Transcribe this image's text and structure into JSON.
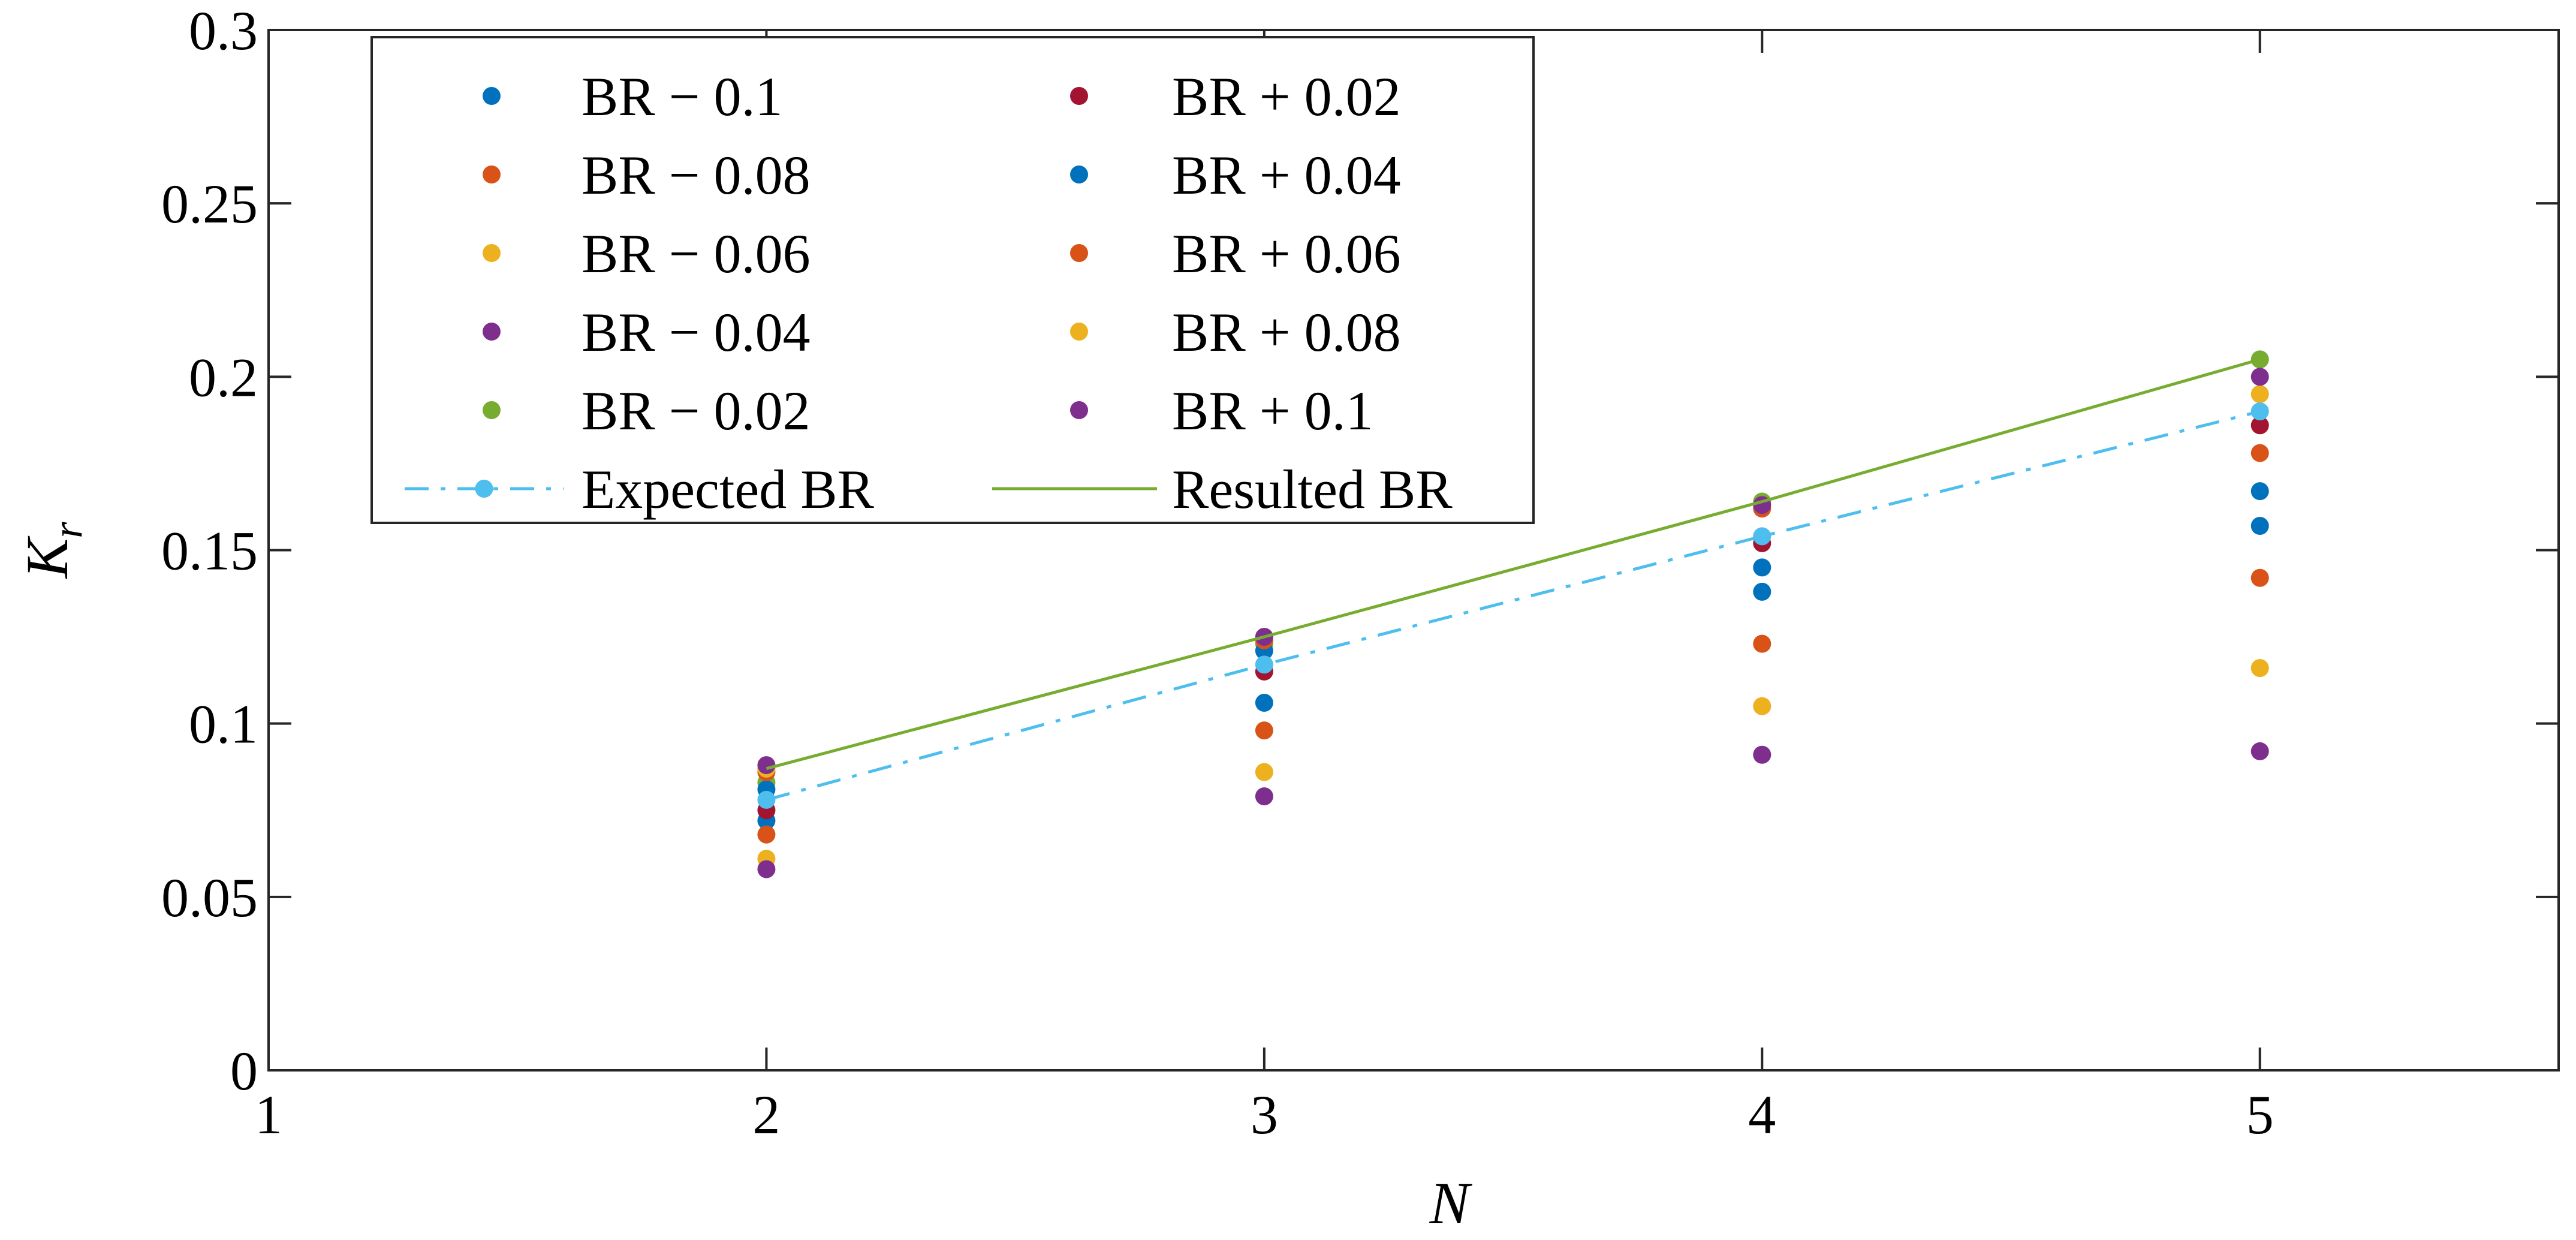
{
  "chart_data": {
    "type": "scatter",
    "title": "",
    "xlabel": "N",
    "ylabel": "K",
    "ylabel_sub": "r",
    "xlim": [
      1,
      5.6
    ],
    "ylim": [
      0,
      0.3
    ],
    "x_ticks": [
      1,
      2,
      3,
      4,
      5
    ],
    "x_tick_labels": [
      "1",
      "2",
      "3",
      "4",
      "5"
    ],
    "y_ticks": [
      0,
      0.05,
      0.1,
      0.15,
      0.2,
      0.25,
      0.3
    ],
    "y_tick_labels": [
      "0",
      "0.05",
      "0.1",
      "0.15",
      "0.2",
      "0.25",
      "0.3"
    ],
    "grid": false,
    "legend_position": "top-left",
    "x": [
      2,
      3,
      4,
      5
    ],
    "series": [
      {
        "name": "BR − 0.1",
        "color": "#0072BD",
        "marker": "dot",
        "values": [
          0.072,
          0.106,
          0.138,
          0.157
        ]
      },
      {
        "name": "BR − 0.08",
        "color": "#D95319",
        "marker": "dot",
        "values": [
          0.068,
          0.098,
          0.123,
          0.142
        ]
      },
      {
        "name": "BR − 0.06",
        "color": "#EDB120",
        "marker": "dot",
        "values": [
          0.061,
          0.086,
          0.105,
          0.116
        ]
      },
      {
        "name": "BR − 0.04",
        "color": "#7E2F8E",
        "marker": "dot",
        "values": [
          0.058,
          0.079,
          0.091,
          0.092
        ]
      },
      {
        "name": "BR − 0.02",
        "color": "#77AC30",
        "marker": "dot",
        "values": [
          0.083,
          0.123,
          0.164,
          0.205
        ]
      },
      {
        "name": "BR + 0.02",
        "color": "#A2142F",
        "marker": "dot",
        "values": [
          0.075,
          0.115,
          0.152,
          0.186
        ]
      },
      {
        "name": "BR + 0.04",
        "color": "#0072BD",
        "marker": "dot",
        "values": [
          0.081,
          0.121,
          0.145,
          0.167
        ]
      },
      {
        "name": "BR + 0.06",
        "color": "#D95319",
        "marker": "dot",
        "values": [
          0.086,
          0.124,
          0.162,
          0.178
        ]
      },
      {
        "name": "BR + 0.08",
        "color": "#EDB120",
        "marker": "dot",
        "values": [
          0.087,
          0.125,
          0.163,
          0.195
        ]
      },
      {
        "name": "BR + 0.1",
        "color": "#7E2F8E",
        "marker": "dot",
        "values": [
          0.088,
          0.125,
          0.163,
          0.2
        ]
      },
      {
        "name": "Expected BR",
        "color": "#4DBEEE",
        "marker": "line-dashdot",
        "values": [
          0.078,
          0.117,
          0.154,
          0.19
        ]
      },
      {
        "name": "Resulted BR",
        "color": "#77AC30",
        "marker": "line-solid",
        "values": [
          0.087,
          0.125,
          0.164,
          0.205
        ]
      }
    ],
    "legend_order": [
      "BR − 0.1",
      "BR + 0.02",
      "BR − 0.08",
      "BR + 0.04",
      "BR − 0.06",
      "BR + 0.06",
      "BR − 0.04",
      "BR + 0.08",
      "BR − 0.02",
      "BR + 0.1",
      "Expected BR",
      "Resulted BR"
    ]
  }
}
